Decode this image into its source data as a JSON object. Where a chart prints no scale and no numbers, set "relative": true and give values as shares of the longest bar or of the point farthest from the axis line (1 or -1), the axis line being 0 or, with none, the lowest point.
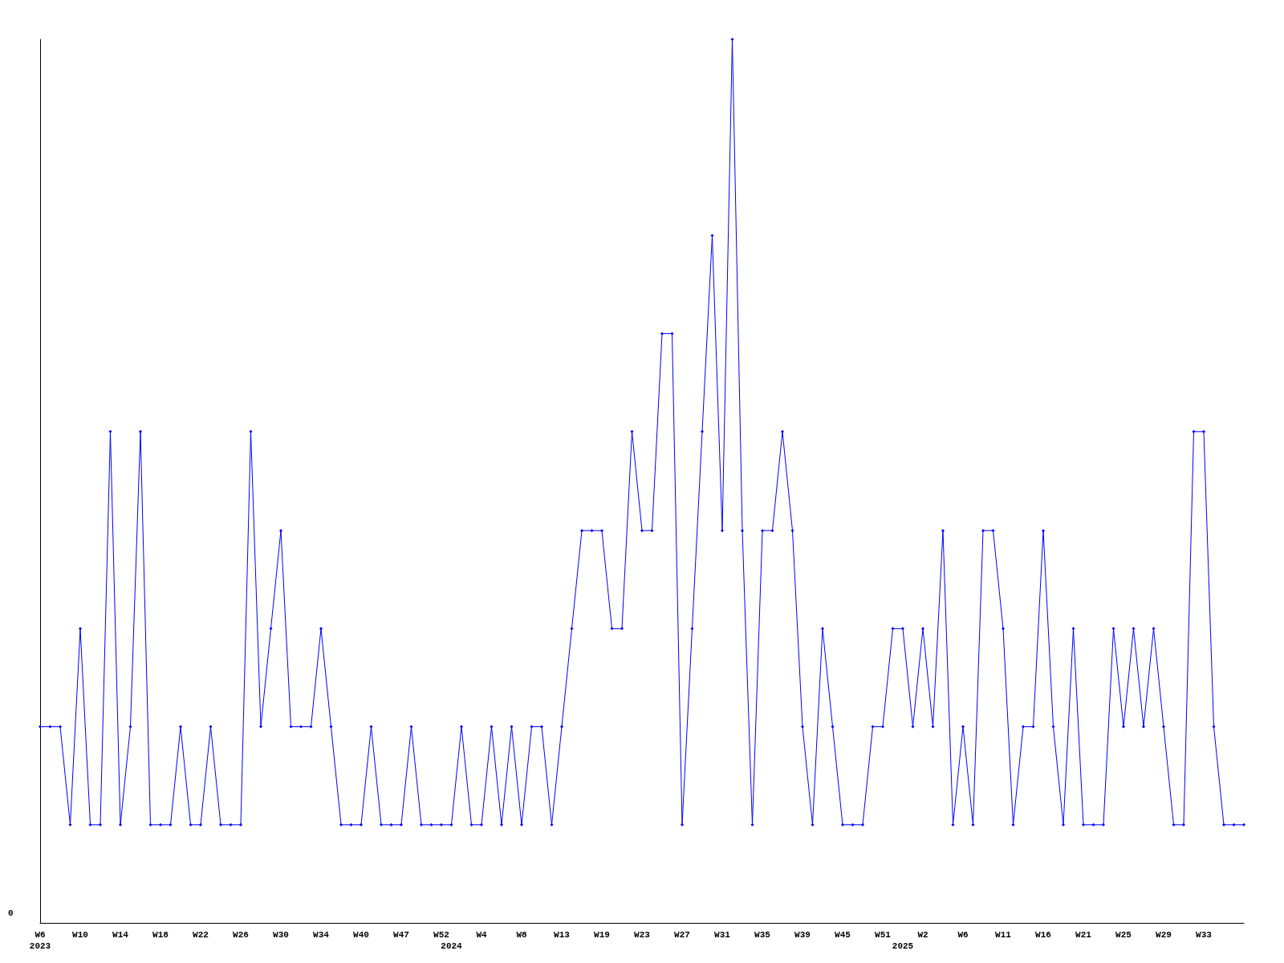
{
  "chart_data": {
    "type": "line",
    "relative": true,
    "categories": [
      "W6\n2023",
      null,
      null,
      null,
      "W10",
      null,
      null,
      null,
      "W14",
      null,
      null,
      null,
      "W18",
      null,
      null,
      null,
      "W22",
      null,
      null,
      null,
      "W26",
      null,
      null,
      null,
      "W30",
      null,
      null,
      null,
      "W34",
      null,
      null,
      null,
      "W40",
      null,
      null,
      null,
      "W47",
      null,
      null,
      null,
      "W52",
      "\n2024",
      null,
      null,
      "W4",
      null,
      null,
      null,
      "W8",
      null,
      null,
      null,
      "W13",
      null,
      null,
      null,
      "W19",
      null,
      null,
      null,
      "W23",
      null,
      null,
      null,
      "W27",
      null,
      null,
      null,
      "W31",
      null,
      null,
      null,
      "W35",
      null,
      null,
      null,
      "W39",
      null,
      null,
      null,
      "W45",
      null,
      null,
      null,
      "W51",
      null,
      "\n2025",
      null,
      "W2",
      null,
      null,
      null,
      "W6",
      null,
      null,
      null,
      "W11",
      null,
      null,
      null,
      "W16",
      null,
      null,
      null,
      "W21",
      null,
      null,
      null,
      "W25",
      null,
      null,
      null,
      "W29",
      null,
      null,
      null,
      "W33",
      null,
      null,
      null,
      null
    ],
    "series": [
      {
        "color": "#0000ff",
        "values": [
          0.222,
          0.222,
          0.222,
          0.111,
          0.333,
          0.111,
          0.111,
          0.556,
          0.111,
          0.222,
          0.556,
          0.111,
          0.111,
          0.111,
          0.222,
          0.111,
          0.111,
          0.222,
          0.111,
          0.111,
          0.111,
          0.556,
          0.222,
          0.333,
          0.444,
          0.222,
          0.222,
          0.222,
          0.333,
          0.222,
          0.111,
          0.111,
          0.111,
          0.222,
          0.111,
          0.111,
          0.111,
          0.222,
          0.111,
          0.111,
          0.111,
          0.111,
          0.222,
          0.111,
          0.111,
          0.222,
          0.111,
          0.222,
          0.111,
          0.222,
          0.222,
          0.111,
          0.222,
          0.333,
          0.444,
          0.444,
          0.444,
          0.333,
          0.333,
          0.556,
          0.444,
          0.444,
          0.667,
          0.667,
          0.111,
          0.333,
          0.556,
          0.778,
          0.444,
          1,
          0.444,
          0.111,
          0.444,
          0.444,
          0.556,
          0.444,
          0.222,
          0.111,
          0.333,
          0.222,
          0.111,
          0.111,
          0.111,
          0.222,
          0.222,
          0.333,
          0.333,
          0.222,
          0.333,
          0.222,
          0.444,
          0.111,
          0.222,
          0.111,
          0.444,
          0.444,
          0.333,
          0.111,
          0.222,
          0.222,
          0.444,
          0.222,
          0.111,
          0.333,
          0.111,
          0.111,
          0.111,
          0.333,
          0.222,
          0.333,
          0.222,
          0.333,
          0.222,
          0.111,
          0.111,
          0.556,
          0.556,
          0.222,
          0.111,
          0.111,
          0.111
        ]
      }
    ],
    "annotations": [
      "0"
    ],
    "marker": "diamond"
  }
}
